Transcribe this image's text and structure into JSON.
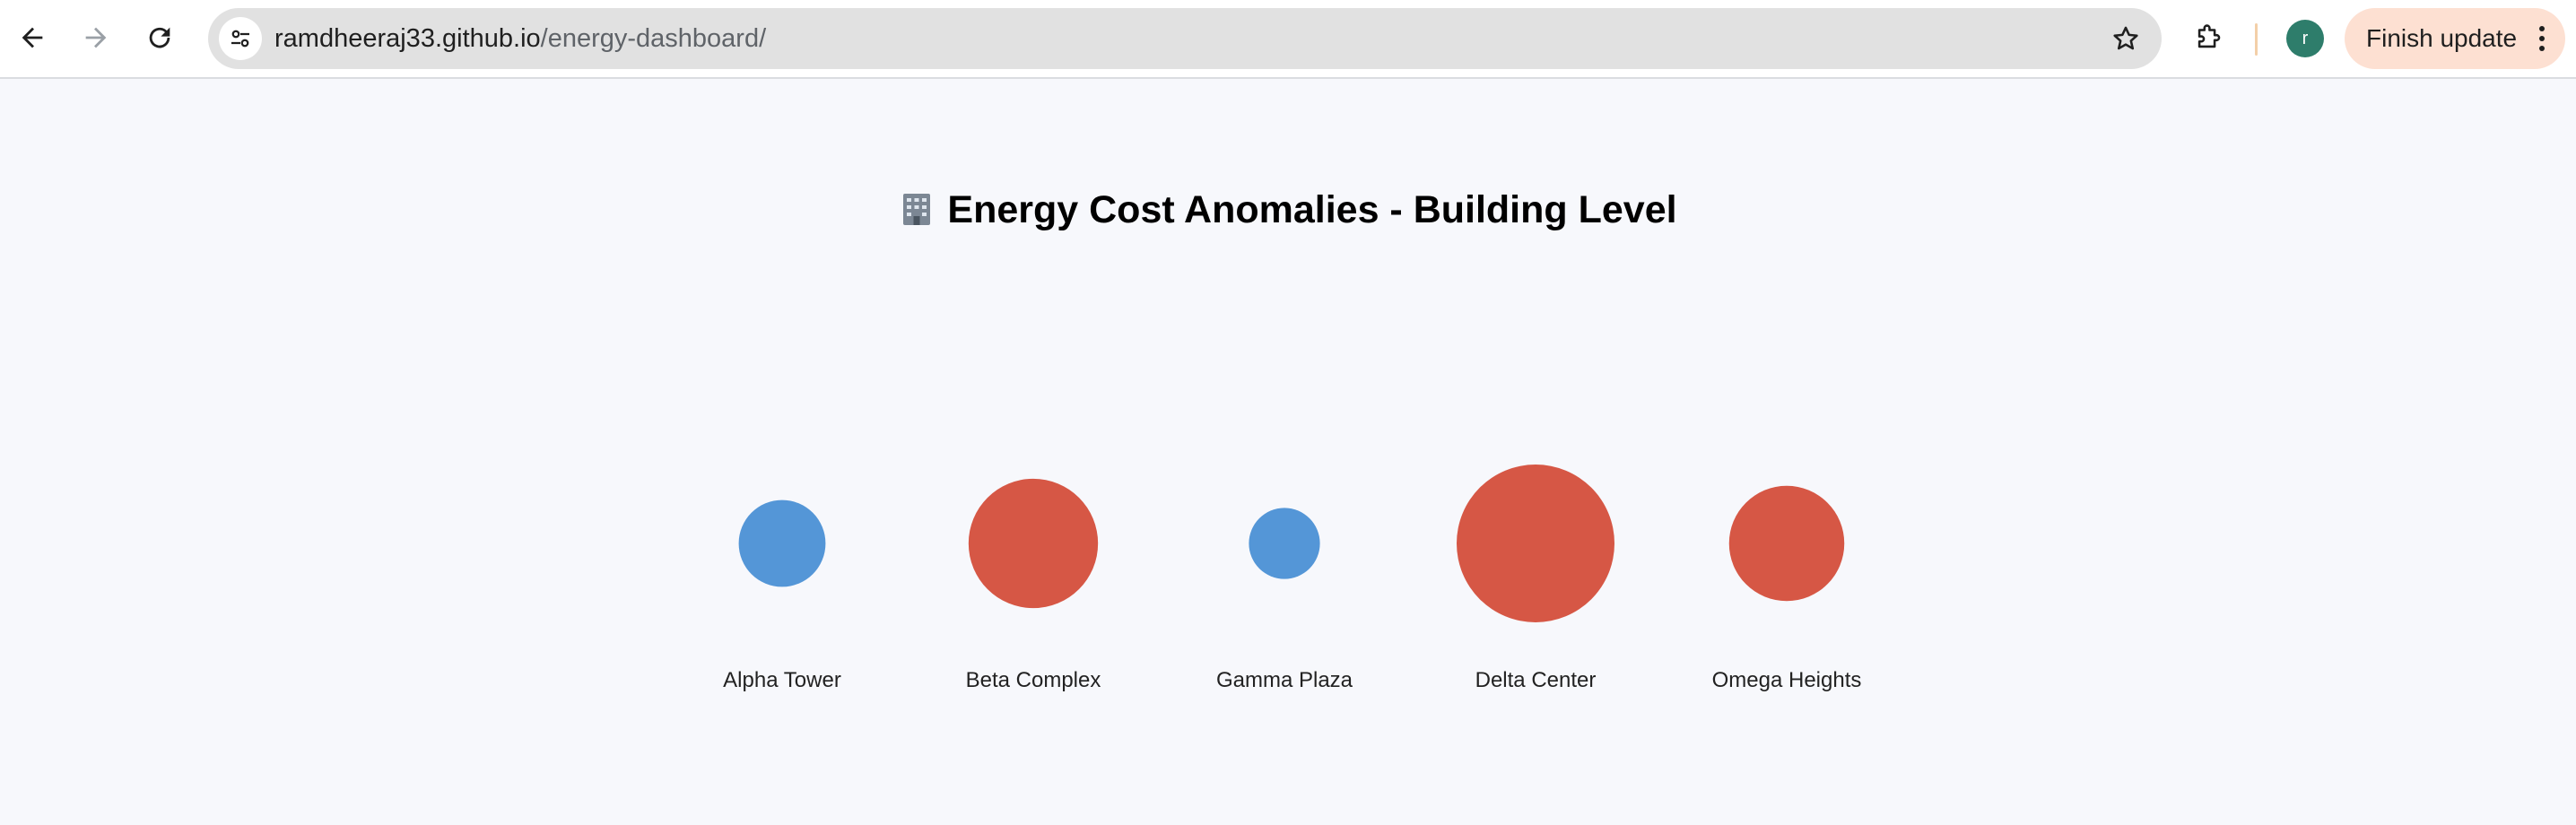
{
  "browser": {
    "url_host": "ramdheeraj33.github.io",
    "url_path": "/energy-dashboard/",
    "avatar_letter": "r",
    "finish_update_label": "Finish update",
    "icons": {
      "back": "back-arrow-icon",
      "forward": "forward-arrow-icon",
      "reload": "reload-icon",
      "site_info": "tune-icon",
      "bookmark": "star-icon",
      "extensions": "puzzle-icon",
      "menu": "kebab-menu-icon"
    }
  },
  "page": {
    "title": "Energy Cost Anomalies - Building Level",
    "title_icon": "office-building-icon"
  },
  "chart_data": {
    "type": "bubble",
    "categories": [
      "Alpha Tower",
      "Beta Complex",
      "Gamma Plaza",
      "Delta Center",
      "Omega Heights"
    ],
    "relative_size": [
      0.55,
      0.82,
      0.45,
      1.0,
      0.73
    ],
    "status": [
      "normal",
      "anomaly",
      "normal",
      "anomaly",
      "anomaly"
    ],
    "colors": {
      "normal": "#5496d7",
      "anomaly": "#d65745"
    }
  }
}
